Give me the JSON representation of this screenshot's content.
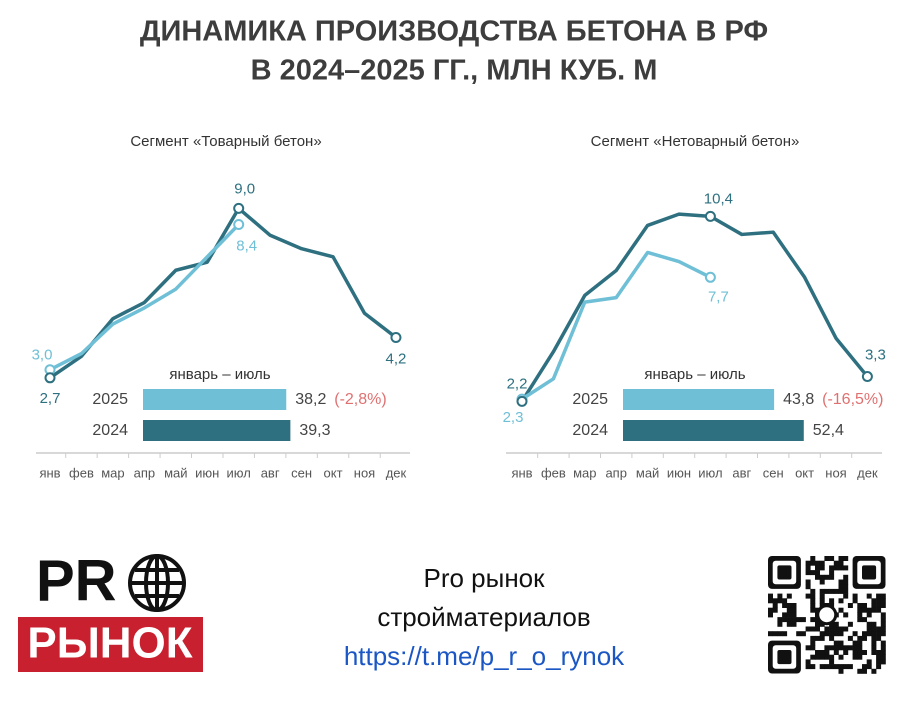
{
  "header": {
    "lines": [
      "ДИНАМИКА ПРОИЗВОДСТВА БЕТОНА В РФ",
      "В 2024–2025 ГГ., МЛН КУБ. М"
    ]
  },
  "chart_data": [
    {
      "type": "line",
      "title": "Сегмент «Товарный бетон»",
      "categories": [
        "янв",
        "фев",
        "мар",
        "апр",
        "май",
        "июн",
        "июл",
        "авг",
        "сен",
        "окт",
        "ноя",
        "дек"
      ],
      "series": [
        {
          "name": "2025",
          "color": "#6fbfd6",
          "values": [
            3.0,
            3.6,
            4.7,
            5.3,
            6.0,
            7.2,
            8.4,
            null,
            null,
            null,
            null,
            null
          ],
          "value_labels": [
            "3,0",
            null,
            null,
            null,
            null,
            null,
            "8,4",
            null,
            null,
            null,
            null,
            null
          ]
        },
        {
          "name": "2024",
          "color": "#2e7080",
          "values": [
            2.7,
            3.5,
            4.9,
            5.5,
            6.7,
            7.0,
            9.0,
            8.0,
            7.5,
            7.2,
            5.1,
            4.2
          ],
          "value_labels": [
            "2,7",
            null,
            null,
            null,
            null,
            null,
            "9,0",
            null,
            null,
            null,
            null,
            "4,2"
          ]
        }
      ],
      "ylim": [
        0,
        10.8
      ],
      "summary": {
        "title": "январь – июль",
        "values": [
          38.2,
          39.3
        ],
        "value_labels": [
          "38,2",
          "39,3"
        ],
        "change": "(-2,8%)"
      }
    },
    {
      "type": "line",
      "title": "Сегмент «Нетоварный бетон»",
      "categories": [
        "янв",
        "фев",
        "мар",
        "апр",
        "май",
        "июн",
        "июл",
        "авг",
        "сен",
        "окт",
        "ноя",
        "дек"
      ],
      "series": [
        {
          "name": "2025",
          "color": "#6fbfd6",
          "values": [
            2.3,
            3.2,
            6.6,
            6.8,
            8.8,
            8.4,
            7.7,
            null,
            null,
            null,
            null,
            null
          ],
          "value_labels": [
            "2,3",
            null,
            null,
            null,
            null,
            null,
            "7,7",
            null,
            null,
            null,
            null,
            null
          ]
        },
        {
          "name": "2024",
          "color": "#2e7080",
          "values": [
            2.2,
            4.4,
            6.9,
            8.0,
            10.0,
            10.5,
            10.4,
            9.6,
            9.7,
            7.7,
            5.0,
            3.3
          ],
          "value_labels": [
            "2,2",
            null,
            null,
            null,
            null,
            null,
            "10,4",
            null,
            null,
            null,
            null,
            "3,3"
          ]
        }
      ],
      "ylim": [
        0,
        12.9
      ],
      "summary": {
        "title": "январь – июль",
        "values": [
          43.8,
          52.4
        ],
        "value_labels": [
          "43,8",
          "52,4"
        ],
        "change": "(-16,5%)"
      }
    }
  ],
  "footer": {
    "brand_top": "PR",
    "brand_bottom": "РЫНОК",
    "lines": [
      "Pro рынок",
      "стройматериалов"
    ],
    "url": "https://t.me/p_r_o_rynok"
  }
}
